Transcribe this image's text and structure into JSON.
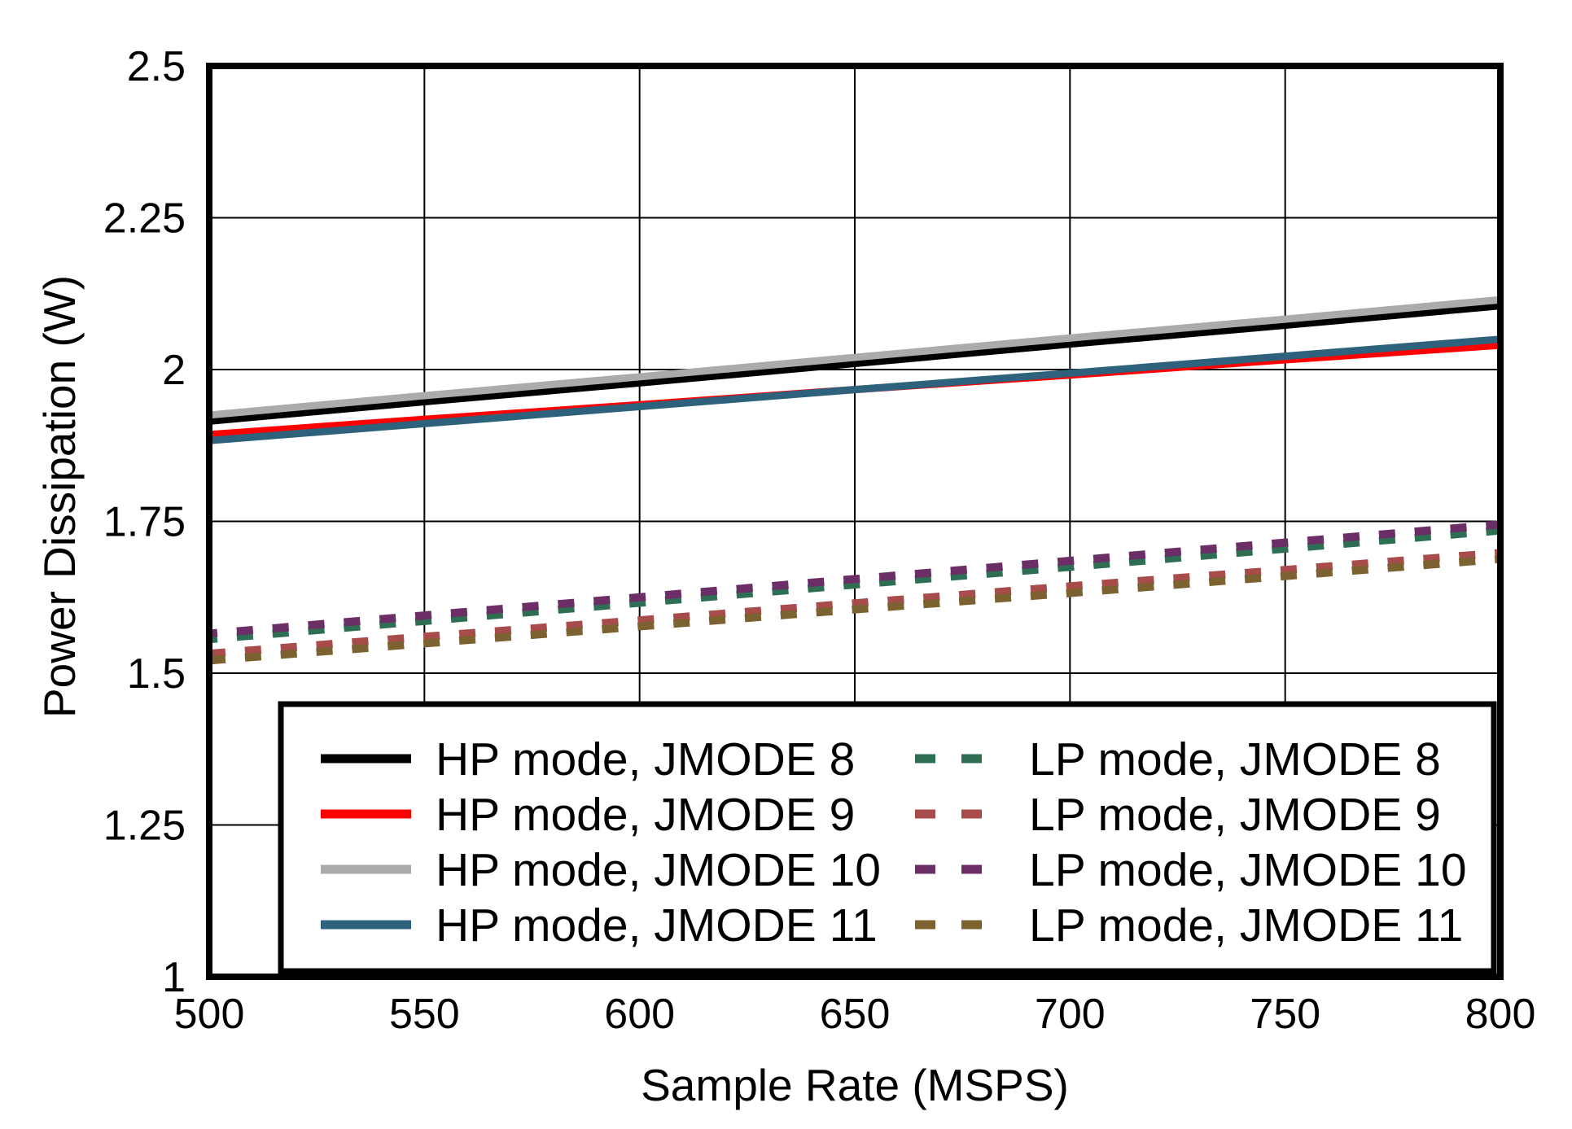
{
  "chart_data": {
    "type": "line",
    "title": "",
    "xlabel": "Sample Rate (MSPS)",
    "ylabel": "Power Dissipation (W)",
    "xlim": [
      500,
      800
    ],
    "ylim": [
      1,
      2.5
    ],
    "x_tick_values": [
      500,
      550,
      600,
      650,
      700,
      750,
      800
    ],
    "x_tick_labels": [
      "500",
      "550",
      "600",
      "650",
      "700",
      "750",
      "800"
    ],
    "y_tick_values": [
      1,
      1.25,
      1.5,
      1.75,
      2,
      2.25,
      2.5
    ],
    "y_tick_labels": [
      "1",
      "1.25",
      "1.5",
      "1.75",
      "2",
      "2.25",
      "2.5"
    ],
    "grid": true,
    "legend_position": "inside-bottom",
    "axis_color": "#000000",
    "gridline_color": "#000000",
    "x": [
      500,
      550,
      600,
      650,
      700,
      750,
      800
    ],
    "series": [
      {
        "name": "HP mode, JMODE 8",
        "color": "#000000",
        "style": "solid",
        "values": [
          1.915,
          1.947,
          1.978,
          2.01,
          2.042,
          2.073,
          2.105
        ]
      },
      {
        "name": "HP mode, JMODE 9",
        "color": "#FF0000",
        "style": "solid",
        "values": [
          1.893,
          1.918,
          1.942,
          1.967,
          1.991,
          2.016,
          2.04
        ]
      },
      {
        "name": "HP mode, JMODE 10",
        "color": "#ABABAB",
        "style": "solid",
        "values": [
          1.925,
          1.957,
          1.988,
          2.02,
          2.052,
          2.083,
          2.115
        ]
      },
      {
        "name": "HP mode, JMODE 11",
        "color": "#2E617C",
        "style": "solid",
        "values": [
          1.883,
          1.911,
          1.939,
          1.967,
          1.994,
          2.022,
          2.05
        ]
      },
      {
        "name": "LP mode, JMODE 8",
        "color": "#2E6E52",
        "style": "dashed",
        "values": [
          1.556,
          1.586,
          1.616,
          1.646,
          1.675,
          1.705,
          1.735
        ]
      },
      {
        "name": "LP mode, JMODE 9",
        "color": "#A84B4B",
        "style": "dashed",
        "values": [
          1.532,
          1.56,
          1.587,
          1.615,
          1.643,
          1.67,
          1.698
        ]
      },
      {
        "name": "LP mode, JMODE 10",
        "color": "#6B2E67",
        "style": "dashed",
        "values": [
          1.565,
          1.595,
          1.625,
          1.655,
          1.685,
          1.715,
          1.745
        ]
      },
      {
        "name": "LP mode, JMODE 11",
        "color": "#7C6231",
        "style": "dashed",
        "values": [
          1.521,
          1.549,
          1.577,
          1.605,
          1.632,
          1.66,
          1.688
        ]
      }
    ]
  }
}
